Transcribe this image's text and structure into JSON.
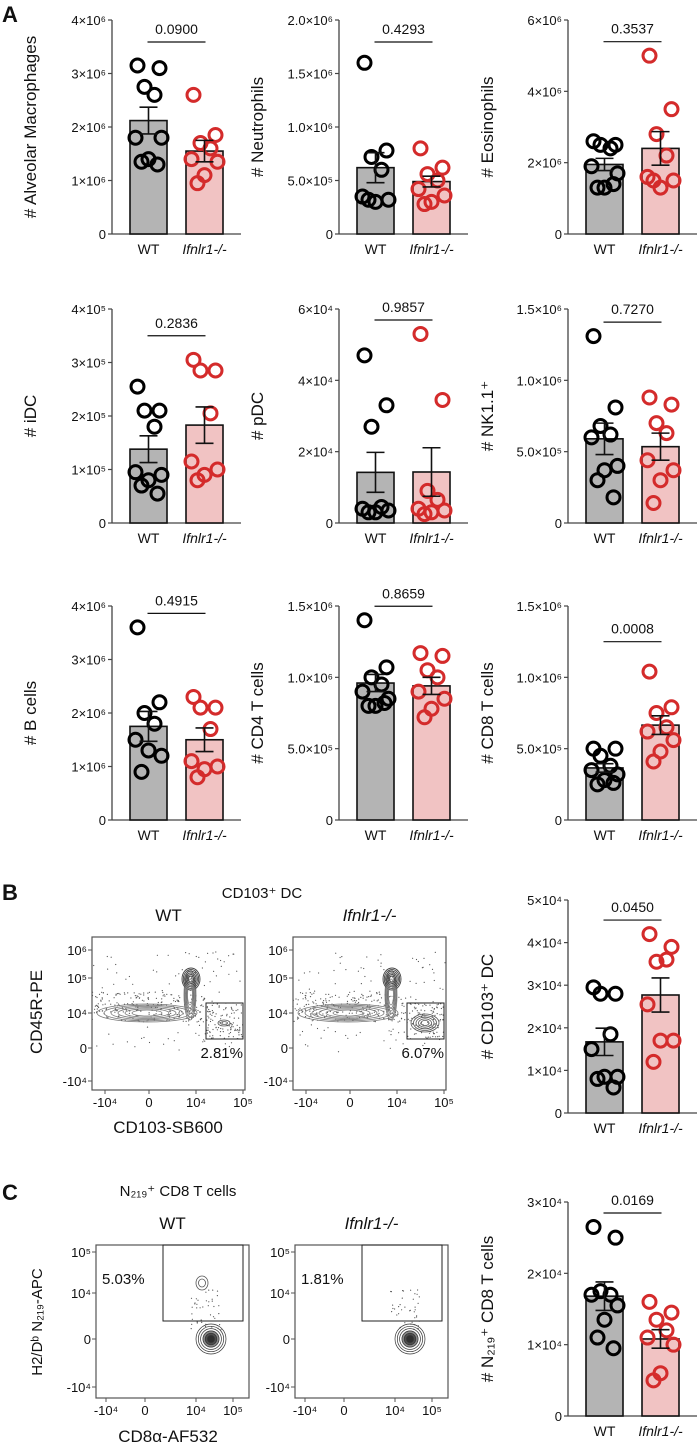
{
  "panel_labels": {
    "A": "A",
    "B": "B",
    "C": "C"
  },
  "colors": {
    "wt_bar": "#b4b4b4",
    "ko_bar": "#f1c3c3",
    "wt_dot": "#000000",
    "ko_dot": "#d42b2b",
    "axis": "#444444"
  },
  "chart_data": [
    {
      "type": "bar",
      "ylabel": "# Alveolar Macrophages",
      "ylim": [
        0,
        4000000
      ],
      "p_value": "0.0900",
      "yticks": [
        {
          "value": 0,
          "label": "0"
        },
        {
          "value": 1000000,
          "label": "1×10⁶"
        },
        {
          "value": 2000000,
          "label": "2×10⁶"
        },
        {
          "value": 3000000,
          "label": "3×10⁶"
        },
        {
          "value": 4000000,
          "label": "4×10⁶"
        }
      ],
      "categories": [
        "WT",
        "Ifnlr1-/-"
      ],
      "series": [
        {
          "category": "WT",
          "mean": 2120000,
          "sem": 250000,
          "points": [
            3150000,
            3100000,
            2750000,
            2600000,
            1800000,
            1800000,
            1400000,
            1350000,
            1300000
          ]
        },
        {
          "category": "Ifnlr1-/-",
          "mean": 1550000,
          "sem": 200000,
          "points": [
            2600000,
            1850000,
            1700000,
            1600000,
            1400000,
            1350000,
            1100000,
            950000
          ]
        }
      ]
    },
    {
      "type": "bar",
      "ylabel": "# Neutrophils",
      "ylim": [
        0,
        2000000
      ],
      "p_value": "0.4293",
      "yticks": [
        {
          "value": 0,
          "label": "0"
        },
        {
          "value": 500000,
          "label": "5.0×10⁵"
        },
        {
          "value": 1000000,
          "label": "1.0×10⁶"
        },
        {
          "value": 1500000,
          "label": "1.5×10⁶"
        },
        {
          "value": 2000000,
          "label": "2.0×10⁶"
        }
      ],
      "categories": [
        "WT",
        "Ifnlr1-/-"
      ],
      "series": [
        {
          "category": "WT",
          "mean": 620000,
          "sem": 140000,
          "points": [
            1600000,
            780000,
            720000,
            600000,
            350000,
            320000,
            300000,
            320000
          ]
        },
        {
          "category": "Ifnlr1-/-",
          "mean": 490000,
          "sem": 50000,
          "points": [
            800000,
            620000,
            560000,
            500000,
            420000,
            360000,
            300000,
            280000
          ]
        }
      ]
    },
    {
      "type": "bar",
      "ylabel": "# Eosinophils",
      "ylim": [
        0,
        6000000
      ],
      "p_value": "0.3537",
      "yticks": [
        {
          "value": 0,
          "label": "0"
        },
        {
          "value": 2000000,
          "label": "2×10⁶"
        },
        {
          "value": 4000000,
          "label": "4×10⁶"
        },
        {
          "value": 6000000,
          "label": "6×10⁶"
        }
      ],
      "categories": [
        "WT",
        "Ifnlr1-/-"
      ],
      "series": [
        {
          "category": "WT",
          "mean": 1950000,
          "sem": 170000,
          "points": [
            2600000,
            2500000,
            2500000,
            2400000,
            1900000,
            1700000,
            1300000,
            1300000,
            1400000
          ]
        },
        {
          "category": "Ifnlr1-/-",
          "mean": 2400000,
          "sem": 470000,
          "points": [
            5000000,
            3500000,
            2800000,
            2200000,
            1600000,
            1500000,
            1300000,
            1500000
          ]
        }
      ]
    },
    {
      "type": "bar",
      "ylabel": "# iDC",
      "ylim": [
        0,
        400000
      ],
      "p_value": "0.2836",
      "yticks": [
        {
          "value": 0,
          "label": "0"
        },
        {
          "value": 100000,
          "label": "1×10⁵"
        },
        {
          "value": 200000,
          "label": "2×10⁵"
        },
        {
          "value": 300000,
          "label": "3×10⁵"
        },
        {
          "value": 400000,
          "label": "4×10⁵"
        }
      ],
      "categories": [
        "WT",
        "Ifnlr1-/-"
      ],
      "series": [
        {
          "category": "WT",
          "mean": 138000,
          "sem": 25000,
          "points": [
            255000,
            210000,
            210000,
            180000,
            95000,
            90000,
            80000,
            70000,
            55000
          ]
        },
        {
          "category": "Ifnlr1-/-",
          "mean": 183000,
          "sem": 34000,
          "points": [
            305000,
            285000,
            285000,
            205000,
            115000,
            100000,
            90000,
            80000
          ]
        }
      ]
    },
    {
      "type": "bar",
      "ylabel": "# pDC",
      "ylim": [
        0,
        60000
      ],
      "p_value": "0.9857",
      "yticks": [
        {
          "value": 0,
          "label": "0"
        },
        {
          "value": 20000,
          "label": "2×10⁴"
        },
        {
          "value": 40000,
          "label": "4×10⁴"
        },
        {
          "value": 60000,
          "label": "6×10⁴"
        }
      ],
      "categories": [
        "WT",
        "Ifnlr1-/-"
      ],
      "series": [
        {
          "category": "WT",
          "mean": 14200,
          "sem": 5600,
          "points": [
            47000,
            33000,
            27000,
            4500,
            4000,
            3500,
            3000,
            3000
          ]
        },
        {
          "category": "Ifnlr1-/-",
          "mean": 14300,
          "sem": 6800,
          "points": [
            53000,
            34500,
            9000,
            6500,
            4000,
            3500,
            3000,
            2500
          ]
        }
      ]
    },
    {
      "type": "bar",
      "ylabel": "# NK1.1⁺",
      "ylim": [
        0,
        1500000
      ],
      "p_value": "0.7270",
      "yticks": [
        {
          "value": 0,
          "label": "0"
        },
        {
          "value": 500000,
          "label": "5.0×10⁵"
        },
        {
          "value": 1000000,
          "label": "1.0×10⁶"
        },
        {
          "value": 1500000,
          "label": "1.5×10⁶"
        }
      ],
      "categories": [
        "WT",
        "Ifnlr1-/-"
      ],
      "series": [
        {
          "category": "WT",
          "mean": 590000,
          "sem": 110000,
          "points": [
            1310000,
            810000,
            680000,
            620000,
            600000,
            400000,
            370000,
            300000,
            180000
          ]
        },
        {
          "category": "Ifnlr1-/-",
          "mean": 535000,
          "sem": 95000,
          "points": [
            880000,
            830000,
            700000,
            630000,
            440000,
            370000,
            300000,
            140000
          ]
        }
      ]
    },
    {
      "type": "bar",
      "ylabel": "# B cells",
      "ylim": [
        0,
        4000000
      ],
      "p_value": "0.4915",
      "yticks": [
        {
          "value": 0,
          "label": "0"
        },
        {
          "value": 1000000,
          "label": "1×10⁶"
        },
        {
          "value": 2000000,
          "label": "2×10⁶"
        },
        {
          "value": 3000000,
          "label": "3×10⁶"
        },
        {
          "value": 4000000,
          "label": "4×10⁶"
        }
      ],
      "categories": [
        "WT",
        "Ifnlr1-/-"
      ],
      "series": [
        {
          "category": "WT",
          "mean": 1750000,
          "sem": 280000,
          "points": [
            3600000,
            2200000,
            2000000,
            1800000,
            1500000,
            1200000,
            1300000,
            900000
          ]
        },
        {
          "category": "Ifnlr1-/-",
          "mean": 1500000,
          "sem": 220000,
          "points": [
            2300000,
            2100000,
            2100000,
            1700000,
            1100000,
            1000000,
            950000,
            800000
          ]
        }
      ]
    },
    {
      "type": "bar",
      "ylabel": "# CD4 T cells",
      "ylim": [
        0,
        1500000
      ],
      "p_value": "0.8659",
      "yticks": [
        {
          "value": 0,
          "label": "0"
        },
        {
          "value": 500000,
          "label": "5.0×10⁵"
        },
        {
          "value": 1000000,
          "label": "1.0×10⁶"
        },
        {
          "value": 1500000,
          "label": "1.5×10⁶"
        }
      ],
      "categories": [
        "WT",
        "Ifnlr1-/-"
      ],
      "series": [
        {
          "category": "WT",
          "mean": 960000,
          "sem": 60000,
          "points": [
            1400000,
            1070000,
            1000000,
            950000,
            900000,
            850000,
            800000,
            800000,
            820000
          ]
        },
        {
          "category": "Ifnlr1-/-",
          "mean": 940000,
          "sem": 60000,
          "points": [
            1170000,
            1150000,
            1050000,
            1000000,
            900000,
            850000,
            780000,
            720000
          ]
        }
      ]
    },
    {
      "type": "bar",
      "ylabel": "# CD8 T cells",
      "ylim": [
        0,
        1500000
      ],
      "p_value": "0.0008",
      "yticks": [
        {
          "value": 0,
          "label": "0"
        },
        {
          "value": 500000,
          "label": "5.0×10⁵"
        },
        {
          "value": 1000000,
          "label": "1.0×10⁶"
        },
        {
          "value": 1500000,
          "label": "1.5×10⁶"
        }
      ],
      "categories": [
        "WT",
        "Ifnlr1-/-"
      ],
      "series": [
        {
          "category": "WT",
          "mean": 365000,
          "sem": 30000,
          "points": [
            500000,
            500000,
            450000,
            380000,
            350000,
            320000,
            280000,
            250000,
            260000
          ]
        },
        {
          "category": "Ifnlr1-/-",
          "mean": 665000,
          "sem": 65000,
          "points": [
            1040000,
            790000,
            750000,
            650000,
            620000,
            560000,
            480000,
            410000
          ]
        }
      ]
    },
    {
      "type": "bar",
      "ylabel": "# CD103⁺ DC",
      "ylim": [
        0,
        50000
      ],
      "p_value": "0.0450",
      "yticks": [
        {
          "value": 0,
          "label": "0"
        },
        {
          "value": 10000,
          "label": "1×10⁴"
        },
        {
          "value": 20000,
          "label": "2×10⁴"
        },
        {
          "value": 30000,
          "label": "3×10⁴"
        },
        {
          "value": 40000,
          "label": "4×10⁴"
        },
        {
          "value": 50000,
          "label": "5×10⁴"
        }
      ],
      "categories": [
        "WT",
        "Ifnlr1-/-"
      ],
      "series": [
        {
          "category": "WT",
          "mean": 16700,
          "sem": 3200,
          "points": [
            29500,
            28000,
            28000,
            18500,
            15000,
            8500,
            8500,
            8000,
            6000
          ]
        },
        {
          "category": "Ifnlr1-/-",
          "mean": 27700,
          "sem": 4000,
          "points": [
            42000,
            39000,
            35500,
            36000,
            25500,
            17000,
            17000,
            12000
          ]
        }
      ]
    },
    {
      "type": "bar",
      "ylabel": "# N₂₁₉⁺ CD8 T cells",
      "ylim": [
        0,
        30000
      ],
      "p_value": "0.0169",
      "yticks": [
        {
          "value": 0,
          "label": "0"
        },
        {
          "value": 10000,
          "label": "1×10⁴"
        },
        {
          "value": 20000,
          "label": "2×10⁴"
        },
        {
          "value": 30000,
          "label": "3×10⁴"
        }
      ],
      "categories": [
        "WT",
        "Ifnlr1-/-"
      ],
      "series": [
        {
          "category": "WT",
          "mean": 16800,
          "sem": 2000,
          "points": [
            26500,
            25000,
            17500,
            17000,
            17000,
            15500,
            13500,
            11000,
            9500
          ]
        },
        {
          "category": "Ifnlr1-/-",
          "mean": 10800,
          "sem": 1300,
          "points": [
            16000,
            14500,
            13500,
            12000,
            11000,
            10000,
            6000,
            5000
          ]
        }
      ]
    }
  ],
  "flow": {
    "B": {
      "title": "CD103⁺ DC",
      "ylabel": "CD45R-PE",
      "xlabel": "CD103-SB600",
      "yticks": [
        "10⁶",
        "10⁵",
        "10⁴",
        "0",
        "-10⁴"
      ],
      "xticks": [
        "-10⁴",
        "0",
        "10⁴",
        "10⁵"
      ],
      "plots": [
        {
          "label": "WT",
          "gate_percent": "2.81%"
        },
        {
          "label": "Ifnlr1-/-",
          "gate_percent": "6.07%"
        }
      ]
    },
    "C": {
      "title": "N₂₁₉⁺ CD8 T cells",
      "ylabel": "H2/Dᵇ N₂₁₉-APC",
      "xlabel": "CD8α-AF532",
      "yticks": [
        "10⁵",
        "10⁴",
        "0",
        "-10⁴"
      ],
      "xticks": [
        "-10⁴",
        "0",
        "10⁴",
        "10⁵"
      ],
      "plots": [
        {
          "label": "WT",
          "gate_percent": "5.03%"
        },
        {
          "label": "Ifnlr1-/-",
          "gate_percent": "1.81%"
        }
      ]
    }
  }
}
